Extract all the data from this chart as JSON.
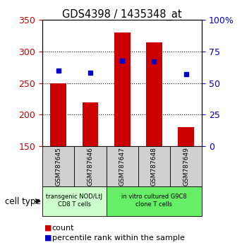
{
  "title": "GDS4398 / 1435348_at",
  "samples": [
    "GSM787645",
    "GSM787646",
    "GSM787647",
    "GSM787648",
    "GSM787649"
  ],
  "counts": [
    250,
    220,
    330,
    315,
    180
  ],
  "percentiles": [
    60,
    58,
    68,
    67,
    57
  ],
  "ymin": 150,
  "ymax": 350,
  "yticks_left": [
    150,
    200,
    250,
    300,
    350
  ],
  "yticks_right": [
    0,
    25,
    50,
    75,
    100
  ],
  "bar_color": "#cc0000",
  "dot_color": "#0000cc",
  "group1_label": "transgenic NOD/LtJ\nCD8 T cells",
  "group2_label": "in vitro cultured G9C8\nclone T cells",
  "group1_color": "#ccffcc",
  "group2_color": "#66ee66",
  "group1_samples": [
    0,
    1
  ],
  "group2_samples": [
    2,
    3,
    4
  ],
  "legend_count_label": "count",
  "legend_pct_label": "percentile rank within the sample",
  "cell_type_label": "cell type",
  "bar_width": 0.5,
  "sample_bg_color": "#d0d0d0",
  "grid_lines": [
    200,
    250,
    300
  ],
  "figw": 3.43,
  "figh": 3.54,
  "dpi": 100
}
